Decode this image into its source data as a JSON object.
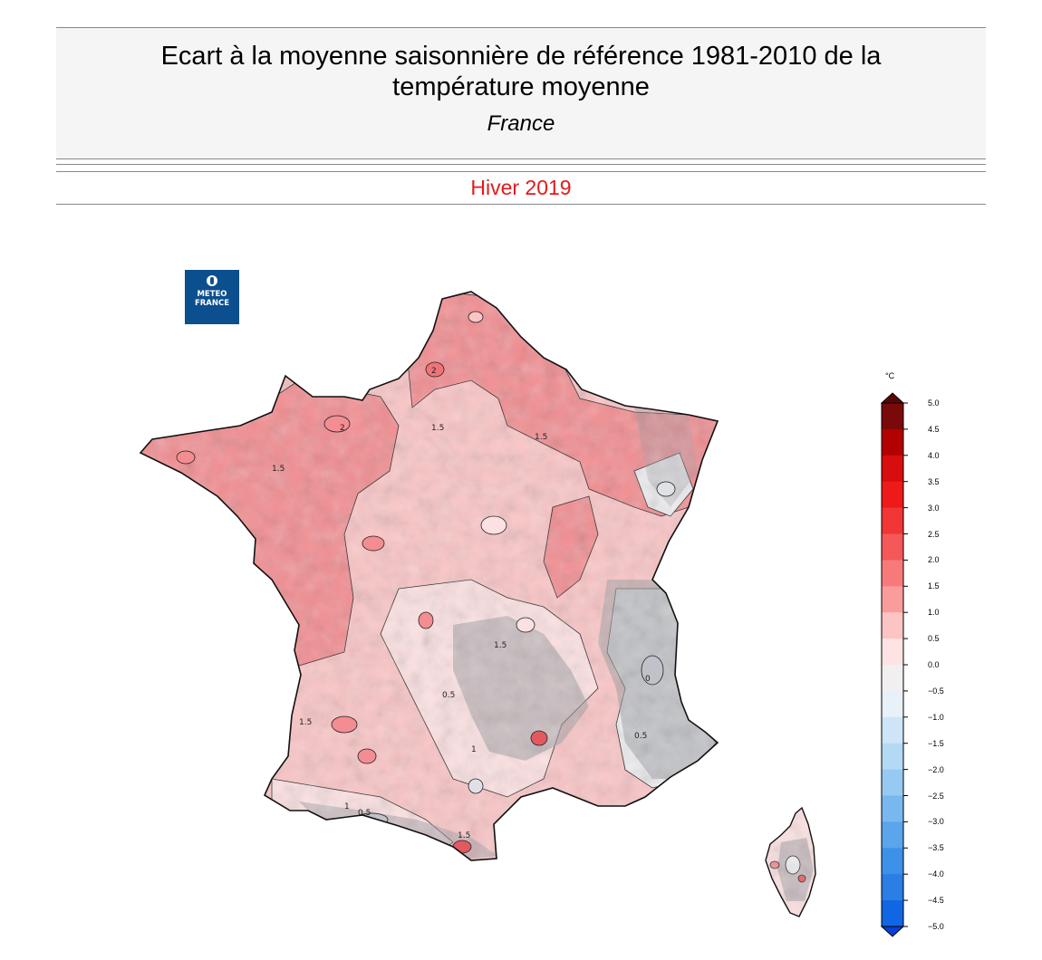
{
  "header": {
    "title_line1": "Ecart à la moyenne saisonnière de référence 1981-2010 de la",
    "title_line2": "température moyenne",
    "subtitle": "France",
    "period": "Hiver 2019"
  },
  "logo": {
    "line1": "METEO",
    "line2": "FRANCE"
  },
  "colorbar": {
    "unit": "°C",
    "ticks": [
      "5.0",
      "4.5",
      "4.0",
      "3.5",
      "3.0",
      "2.5",
      "2.0",
      "1.5",
      "1.0",
      "0.5",
      "0.0",
      "−0.5",
      "−1.0",
      "−1.5",
      "−2.0",
      "−2.5",
      "−3.0",
      "−3.5",
      "−4.0",
      "−4.5",
      "−5.0"
    ],
    "colors": [
      "#7a0a0a",
      "#b30000",
      "#d80d0d",
      "#ee1a1a",
      "#f23535",
      "#f55858",
      "#f77a7a",
      "#fa9c9c",
      "#fdc4c4",
      "#fde3e3",
      "#f2eff1",
      "#e8f0f8",
      "#cde5f6",
      "#b3d9f5",
      "#96caf2",
      "#78b8ef",
      "#5aa5ec",
      "#3e91e8",
      "#2a7ee5",
      "#1166e4"
    ]
  },
  "map": {
    "contour_labels": [
      "2",
      "1.5",
      "1",
      "0.5",
      "0"
    ],
    "palette": {
      "strong": "#f38d91",
      "mid": "#f7a9ac",
      "light": "#fbc5c6",
      "pale": "#fde1e2",
      "neutral": "#eeeef1",
      "relief": "#9d9ea3"
    }
  }
}
